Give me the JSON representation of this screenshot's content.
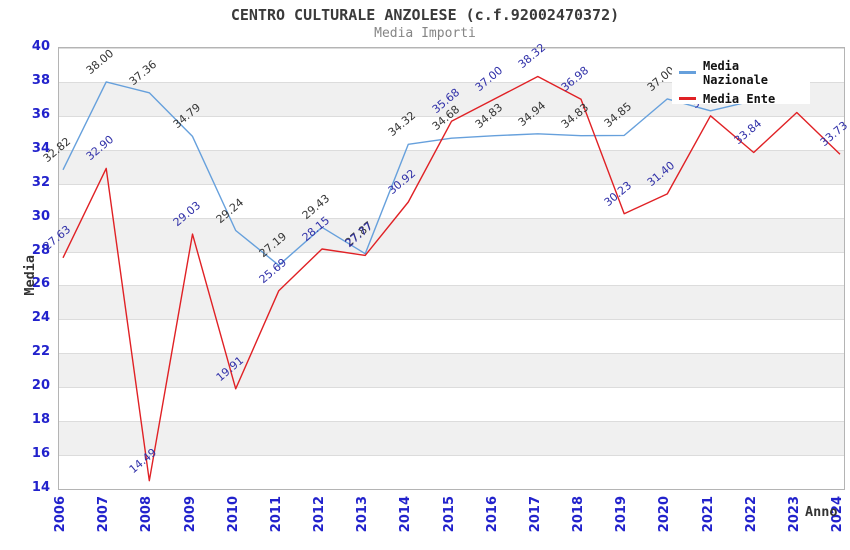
{
  "title": "CENTRO CULTURALE ANZOLESE (c.f.92002470372)",
  "subtitle": "Media Importi",
  "chart_data": {
    "type": "line",
    "title": "CENTRO CULTURALE ANZOLESE (c.f.92002470372)",
    "subtitle": "Media Importi",
    "xlabel": "Anno",
    "ylabel": "Media",
    "x": [
      2006,
      2007,
      2008,
      2009,
      2010,
      2011,
      2012,
      2013,
      2014,
      2015,
      2016,
      2017,
      2018,
      2019,
      2020,
      2021,
      2022,
      2023,
      2024
    ],
    "ylim": [
      14,
      40
    ],
    "ytick_step": 2,
    "grid": "horizontal-bands",
    "band_color": "#f0f0f0",
    "tick_color": "#2222cc",
    "legend_position": "top-right-overlapping",
    "series": [
      {
        "name": "Media Nazionale",
        "color": "#66a0dc",
        "label_color": "#333333",
        "values": [
          32.82,
          38.0,
          37.36,
          34.79,
          29.24,
          27.19,
          29.43,
          27.87,
          34.32,
          34.68,
          34.83,
          34.94,
          34.83,
          34.85,
          37.0,
          36.3,
          36.9,
          null,
          null
        ]
      },
      {
        "name": "Media Ente",
        "color": "#e02125",
        "label_color": "#2f2fa8",
        "values": [
          27.63,
          32.9,
          14.49,
          29.03,
          19.91,
          25.69,
          28.15,
          27.77,
          30.92,
          35.68,
          37.0,
          38.32,
          36.98,
          30.23,
          31.4,
          36.0,
          33.84,
          36.2,
          33.73
        ]
      }
    ]
  }
}
